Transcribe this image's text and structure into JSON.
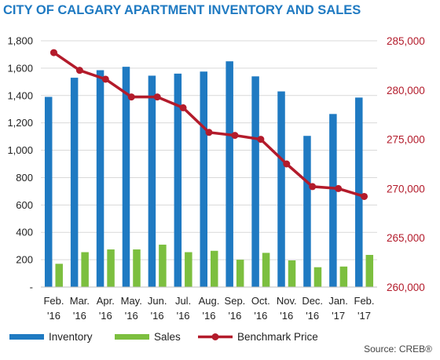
{
  "colors": {
    "title": "#1f7ac2",
    "inventory": "#1f7ac2",
    "sales": "#7cbf3f",
    "benchmark": "#b31b2b",
    "right_axis_text": "#b31b2b",
    "grid": "#d9d9d9"
  },
  "source": "Source: CREB®",
  "chart_data": {
    "type": "bar",
    "title": "CITY OF CALGARY APARTMENT INVENTORY AND SALES",
    "categories": [
      [
        "Feb.",
        "'16"
      ],
      [
        "Mar.",
        "'16"
      ],
      [
        "Apr.",
        "'16"
      ],
      [
        "May.",
        "'16"
      ],
      [
        "Jun.",
        "'16"
      ],
      [
        "Jul.",
        "'16"
      ],
      [
        "Aug.",
        "'16"
      ],
      [
        "Sep.",
        "'16"
      ],
      [
        "Oct.",
        "'16"
      ],
      [
        "Nov.",
        "'16"
      ],
      [
        "Dec.",
        "'16"
      ],
      [
        "Jan.",
        "'17"
      ],
      [
        "Feb.",
        "'17"
      ]
    ],
    "left_axis": {
      "min": 0,
      "max": 1800,
      "ticks": [
        "-",
        "200",
        "400",
        "600",
        "800",
        "1,000",
        "1,200",
        "1,400",
        "1,600",
        "1,800"
      ]
    },
    "right_axis": {
      "min": 260000,
      "max": 285000,
      "ticks": [
        "260,000",
        "265,000",
        "270,000",
        "275,000",
        "280,000",
        "285,000"
      ]
    },
    "grid": true,
    "legend_position": "bottom",
    "series": [
      {
        "name": "Inventory",
        "type": "bar",
        "axis": "left",
        "values": [
          1390,
          1530,
          1585,
          1610,
          1545,
          1560,
          1575,
          1650,
          1540,
          1430,
          1105,
          1265,
          1385
        ]
      },
      {
        "name": "Sales",
        "type": "bar",
        "axis": "left",
        "values": [
          170,
          255,
          275,
          275,
          310,
          255,
          265,
          200,
          250,
          195,
          145,
          150,
          235
        ]
      },
      {
        "name": "Benchmark Price",
        "type": "line",
        "axis": "right",
        "values": [
          283800,
          282000,
          281100,
          279300,
          279300,
          278200,
          275700,
          275400,
          275000,
          272500,
          270200,
          270000,
          269200
        ]
      }
    ]
  }
}
